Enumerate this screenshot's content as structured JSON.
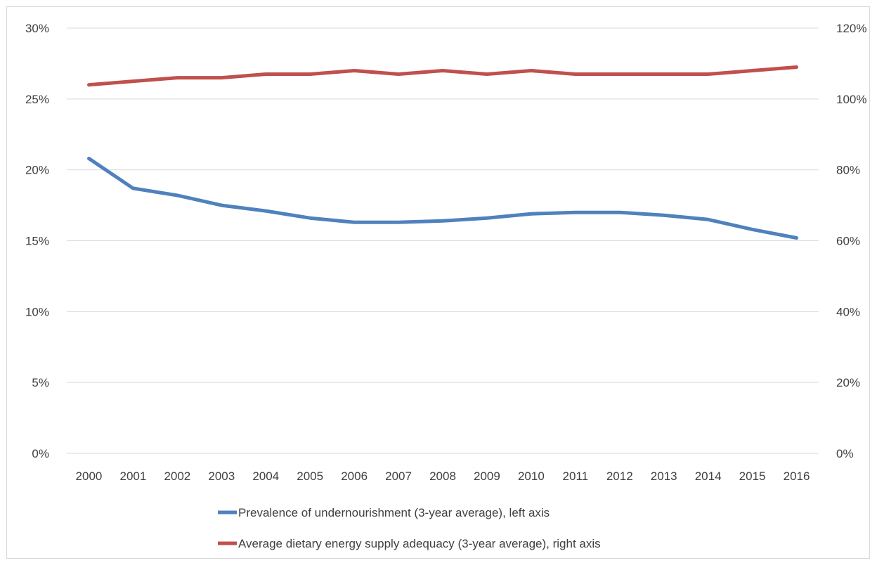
{
  "chart_data": {
    "type": "line",
    "x": [
      "2000",
      "2001",
      "2002",
      "2003",
      "2004",
      "2005",
      "2006",
      "2007",
      "2008",
      "2009",
      "2010",
      "2011",
      "2012",
      "2013",
      "2014",
      "2015",
      "2016"
    ],
    "series": [
      {
        "name": "Prevalence of undernourishment (3-year average), left axis",
        "axis": "left",
        "color": "#4f81bd",
        "values": [
          20.8,
          18.7,
          18.2,
          17.5,
          17.1,
          16.6,
          16.3,
          16.3,
          16.4,
          16.6,
          16.9,
          17.0,
          17.0,
          16.8,
          16.5,
          15.8,
          15.2
        ]
      },
      {
        "name": "Average dietary energy supply adequacy (3-year average), right axis",
        "axis": "right",
        "color": "#c0504d",
        "values": [
          104,
          105,
          106,
          106,
          107,
          107,
          108,
          107,
          108,
          107,
          108,
          107,
          107,
          107,
          107,
          108,
          109
        ]
      }
    ],
    "left_axis": {
      "ylim": [
        0,
        30
      ],
      "ticks": [
        "0%",
        "5%",
        "10%",
        "15%",
        "20%",
        "25%",
        "30%"
      ]
    },
    "right_axis": {
      "ylim": [
        0,
        120
      ],
      "ticks": [
        "0%",
        "20%",
        "40%",
        "60%",
        "80%",
        "100%",
        "120%"
      ]
    },
    "grid": true,
    "legend_position": "bottom"
  }
}
